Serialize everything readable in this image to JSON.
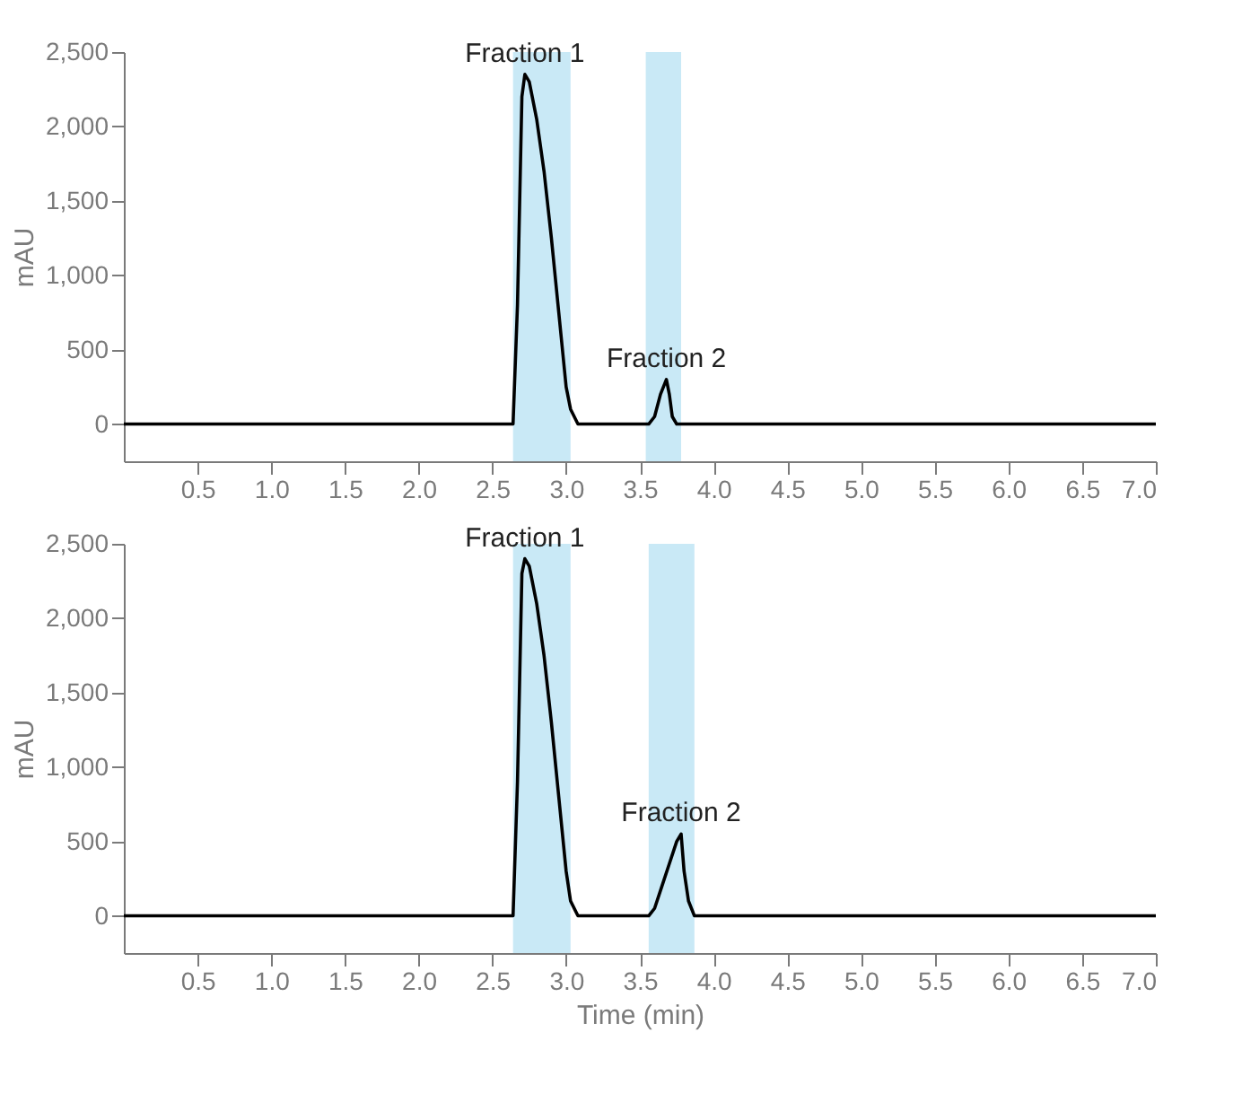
{
  "chart_data": [
    {
      "type": "line",
      "ylabel": "mAU",
      "xlim": [
        0,
        7.0
      ],
      "ylim": [
        -250,
        2500
      ],
      "xticks": [
        0.5,
        {
          "value": 1,
          "label": "1.0"
        },
        1.5,
        {
          "value": 2,
          "label": "2.0"
        },
        2.5,
        {
          "value": 3,
          "label": "3.0"
        },
        3.5,
        {
          "value": 4,
          "label": "4.0"
        },
        4.5,
        {
          "value": 5,
          "label": "5.0"
        },
        5.5,
        {
          "value": 6,
          "label": "6.0"
        },
        6.5,
        {
          "value": 7,
          "label": "7.0"
        }
      ],
      "yticks": [
        0,
        {
          "value": 500,
          "label": "500"
        },
        {
          "value": 1000,
          "label": "1,000"
        },
        {
          "value": 1500,
          "label": "1,500"
        },
        {
          "value": 2000,
          "label": "2,000"
        },
        {
          "value": 2500,
          "label": "2,500"
        }
      ],
      "grid": false,
      "series": [
        {
          "color": "#000000",
          "x": [
            0,
            2.6,
            2.64,
            2.67,
            2.7,
            2.72,
            2.75,
            2.8,
            2.85,
            2.9,
            2.95,
            3.0,
            3.03,
            3.08,
            3.15,
            3.56,
            3.6,
            3.64,
            3.68,
            3.7,
            3.72,
            3.75,
            3.85,
            7.0
          ],
          "values": [
            0,
            0,
            0,
            800,
            2200,
            2350,
            2300,
            2050,
            1700,
            1250,
            750,
            250,
            100,
            0,
            0,
            0,
            50,
            200,
            300,
            200,
            50,
            0,
            0,
            0
          ]
        }
      ],
      "bands": [
        {
          "axis": "x",
          "from": 2.64,
          "to": 3.03,
          "color": "#c9e9f6"
        },
        {
          "axis": "x",
          "from": 3.54,
          "to": 3.78,
          "color": "#c9e9f6"
        }
      ],
      "annotations": [
        "Fraction 1",
        "Fraction 2"
      ]
    },
    {
      "type": "line",
      "xlabel": "Time (min)",
      "ylabel": "mAU",
      "xlim": [
        0,
        7.0
      ],
      "ylim": [
        -250,
        2500
      ],
      "xticks": [
        0.5,
        {
          "value": 1,
          "label": "1.0"
        },
        1.5,
        {
          "value": 2,
          "label": "2.0"
        },
        2.5,
        {
          "value": 3,
          "label": "3.0"
        },
        3.5,
        {
          "value": 4,
          "label": "4.0"
        },
        4.5,
        {
          "value": 5,
          "label": "5.0"
        },
        5.5,
        {
          "value": 6,
          "label": "6.0"
        },
        6.5,
        {
          "value": 7,
          "label": "7.0"
        }
      ],
      "yticks": [
        0,
        {
          "value": 500,
          "label": "500"
        },
        {
          "value": 1000,
          "label": "1,000"
        },
        {
          "value": 1500,
          "label": "1,500"
        },
        {
          "value": 2000,
          "label": "2,000"
        },
        {
          "value": 2500,
          "label": "2,500"
        }
      ],
      "grid": false,
      "series": [
        {
          "color": "#000000",
          "x": [
            0,
            2.6,
            2.64,
            2.67,
            2.7,
            2.72,
            2.75,
            2.8,
            2.85,
            2.9,
            2.95,
            3.0,
            3.03,
            3.08,
            3.15,
            3.56,
            3.6,
            3.65,
            3.7,
            3.75,
            3.78,
            3.8,
            3.83,
            3.87,
            3.95,
            7.0
          ],
          "values": [
            0,
            0,
            0,
            900,
            2300,
            2400,
            2350,
            2100,
            1750,
            1300,
            800,
            300,
            100,
            0,
            0,
            0,
            50,
            200,
            350,
            500,
            550,
            300,
            100,
            0,
            0,
            0
          ]
        }
      ],
      "bands": [
        {
          "axis": "x",
          "from": 2.64,
          "to": 3.03,
          "color": "#c9e9f6"
        },
        {
          "axis": "x",
          "from": 3.56,
          "to": 3.87,
          "color": "#c9e9f6"
        }
      ],
      "annotations": [
        "Fraction 1",
        "Fraction 2"
      ]
    }
  ]
}
